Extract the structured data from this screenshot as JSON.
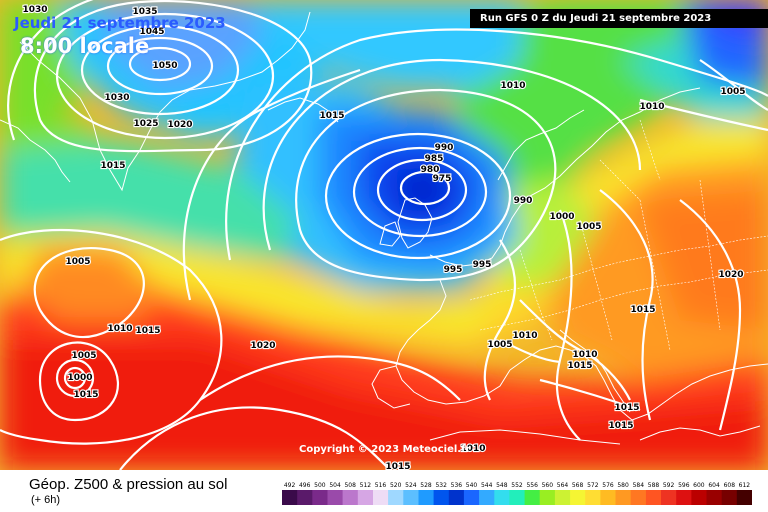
{
  "header": {
    "date": "Jeudi 21 septembre 2023",
    "time": "8:00 locale",
    "run": "Run GFS 0 Z du Jeudi 21 septembre 2023"
  },
  "copyright": "Copyright © 2023 Meteociel.fr",
  "legend": {
    "title": "Géop. Z500 & pression au sol",
    "subtitle": "(+ 6h)",
    "scale": [
      "492",
      "496",
      "500",
      "504",
      "508",
      "512",
      "516",
      "520",
      "524",
      "528",
      "532",
      "536",
      "540",
      "544",
      "548",
      "552",
      "556",
      "560",
      "564",
      "568",
      "572",
      "576",
      "580",
      "584",
      "588",
      "592",
      "596",
      "600",
      "604",
      "608",
      "612"
    ],
    "colors": [
      "#3a0a4a",
      "#5a1a6a",
      "#7a2a8a",
      "#9a4aaa",
      "#bb77cc",
      "#d6a6e4",
      "#eedcf5",
      "#9fd8ff",
      "#5cbfff",
      "#1f9bff",
      "#0055ee",
      "#0033cc",
      "#1a66ff",
      "#33aaff",
      "#33ddee",
      "#22eebb",
      "#44ee44",
      "#99ee22",
      "#ccf233",
      "#f5f533",
      "#ffdd33",
      "#ffbb22",
      "#ff9922",
      "#ff7722",
      "#ff5522",
      "#ee3322",
      "#dd1111",
      "#bb0000",
      "#990000",
      "#770000",
      "#440000"
    ]
  },
  "isobar_labels": [
    {
      "id": "l1030a",
      "text": "1030"
    },
    {
      "id": "l1035",
      "text": "1035"
    },
    {
      "id": "l1045",
      "text": "1045"
    },
    {
      "id": "l1050",
      "text": "1050"
    },
    {
      "id": "l1030b",
      "text": "1030"
    },
    {
      "id": "l1025",
      "text": "1025"
    },
    {
      "id": "l1020a",
      "text": "1020"
    },
    {
      "id": "l1015a",
      "text": "1015"
    },
    {
      "id": "l1015b",
      "text": "1015"
    },
    {
      "id": "l1010a",
      "text": "1010"
    },
    {
      "id": "l1010b",
      "text": "1010"
    },
    {
      "id": "l1005a",
      "text": "1005"
    },
    {
      "id": "l990a",
      "text": "990"
    },
    {
      "id": "l985",
      "text": "985"
    },
    {
      "id": "l980",
      "text": "980"
    },
    {
      "id": "l975",
      "text": "975"
    },
    {
      "id": "l990b",
      "text": "990"
    },
    {
      "id": "l1000",
      "text": "1000"
    },
    {
      "id": "l1005b",
      "text": "1005"
    },
    {
      "id": "l995a",
      "text": "995"
    },
    {
      "id": "l995b",
      "text": "995"
    },
    {
      "id": "l1005c",
      "text": "1005"
    },
    {
      "id": "l1020b",
      "text": "1020"
    },
    {
      "id": "l1010c",
      "text": "1010"
    },
    {
      "id": "l1015c",
      "text": "1015"
    },
    {
      "id": "l1020c",
      "text": "1020"
    },
    {
      "id": "l1005d",
      "text": "1005"
    },
    {
      "id": "l1005e",
      "text": "1005"
    },
    {
      "id": "l1010d",
      "text": "1010"
    },
    {
      "id": "l1015d",
      "text": "1015"
    },
    {
      "id": "l1010e",
      "text": "1010"
    },
    {
      "id": "l1015e",
      "text": "1015"
    },
    {
      "id": "l1015f",
      "text": "1015"
    },
    {
      "id": "l1015g",
      "text": "1015"
    },
    {
      "id": "l1015h",
      "text": "1015"
    },
    {
      "id": "l1010f",
      "text": "1010"
    },
    {
      "id": "l1015i",
      "text": "1015"
    },
    {
      "id": "l1000b",
      "text": "1000"
    }
  ]
}
